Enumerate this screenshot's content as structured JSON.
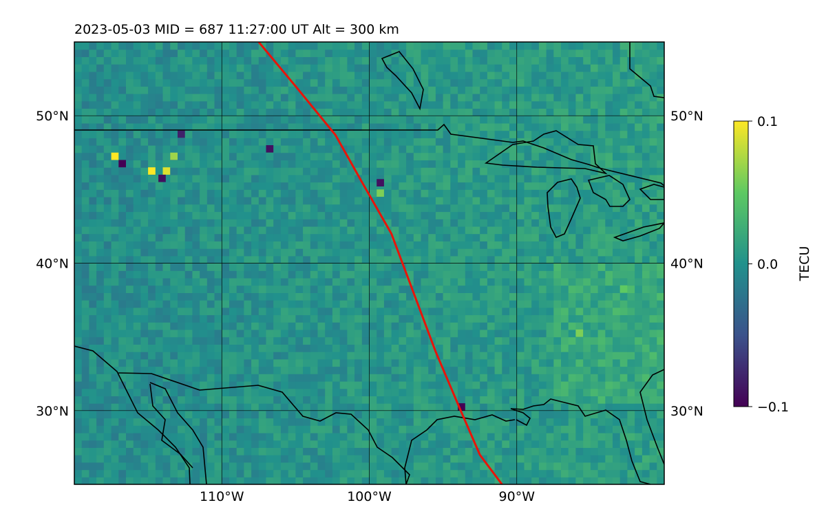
{
  "header": {
    "title": "2023-05-03  MID = 687    11:27:00  UT  Alt = 300 km"
  },
  "colors": {
    "path": "#e8140a",
    "coast": "#000000",
    "grid": "#000000",
    "cmap": [
      "#440154",
      "#3b528b",
      "#21918c",
      "#5ec962",
      "#fde725"
    ]
  },
  "chart_data": {
    "type": "heatmap",
    "title": "2023-05-03  MID = 687    11:27:00  UT  Alt = 300 km",
    "xlabel": "",
    "ylabel": "",
    "xlim": [
      -120,
      -80
    ],
    "ylim": [
      25,
      55
    ],
    "x_ticks": [
      {
        "value": -110,
        "label": "110°W"
      },
      {
        "value": -100,
        "label": "100°W"
      },
      {
        "value": -90,
        "label": "90°W"
      }
    ],
    "y_ticks": [
      {
        "value": 30,
        "label": "30°N"
      },
      {
        "value": 40,
        "label": "40°N"
      },
      {
        "value": 50,
        "label": "50°N"
      }
    ],
    "grid": true,
    "colorbar": {
      "label": "TECU",
      "min": -0.1,
      "max": 0.1,
      "ticks": [
        {
          "value": 0.1,
          "label": "0.1"
        },
        {
          "value": 0.0,
          "label": "0.0"
        },
        {
          "value": -0.1,
          "label": "−0.1"
        }
      ]
    },
    "path": {
      "color": "#e8140a",
      "points": [
        [
          -107.5,
          55.0
        ],
        [
          -105.0,
          52.0
        ],
        [
          -102.3,
          48.7
        ],
        [
          -100.5,
          45.5
        ],
        [
          -98.5,
          42.0
        ],
        [
          -97.0,
          38.0
        ],
        [
          -95.5,
          34.0
        ],
        [
          -93.8,
          30.0
        ],
        [
          -92.5,
          27.0
        ],
        [
          -91.0,
          25.0
        ]
      ]
    },
    "anomalies": [
      {
        "lon": -117.5,
        "lat": 47.0,
        "value": 0.1
      },
      {
        "lon": -117.0,
        "lat": 46.5,
        "value": -0.1
      },
      {
        "lon": -115.0,
        "lat": 46.0,
        "value": 0.1
      },
      {
        "lon": -114.0,
        "lat": 46.0,
        "value": 0.09
      },
      {
        "lon": -113.5,
        "lat": 47.0,
        "value": 0.07
      },
      {
        "lon": -114.3,
        "lat": 45.5,
        "value": -0.09
      },
      {
        "lon": -113.0,
        "lat": 48.5,
        "value": -0.08
      },
      {
        "lon": -107.0,
        "lat": 47.5,
        "value": -0.09
      },
      {
        "lon": -99.5,
        "lat": 45.2,
        "value": -0.09
      },
      {
        "lon": -99.5,
        "lat": 44.5,
        "value": 0.06
      },
      {
        "lon": -94.0,
        "lat": 30.0,
        "value": -0.1
      },
      {
        "lon": -86.0,
        "lat": 35.0,
        "value": 0.06
      },
      {
        "lon": -83.0,
        "lat": 38.0,
        "value": 0.05
      }
    ]
  }
}
